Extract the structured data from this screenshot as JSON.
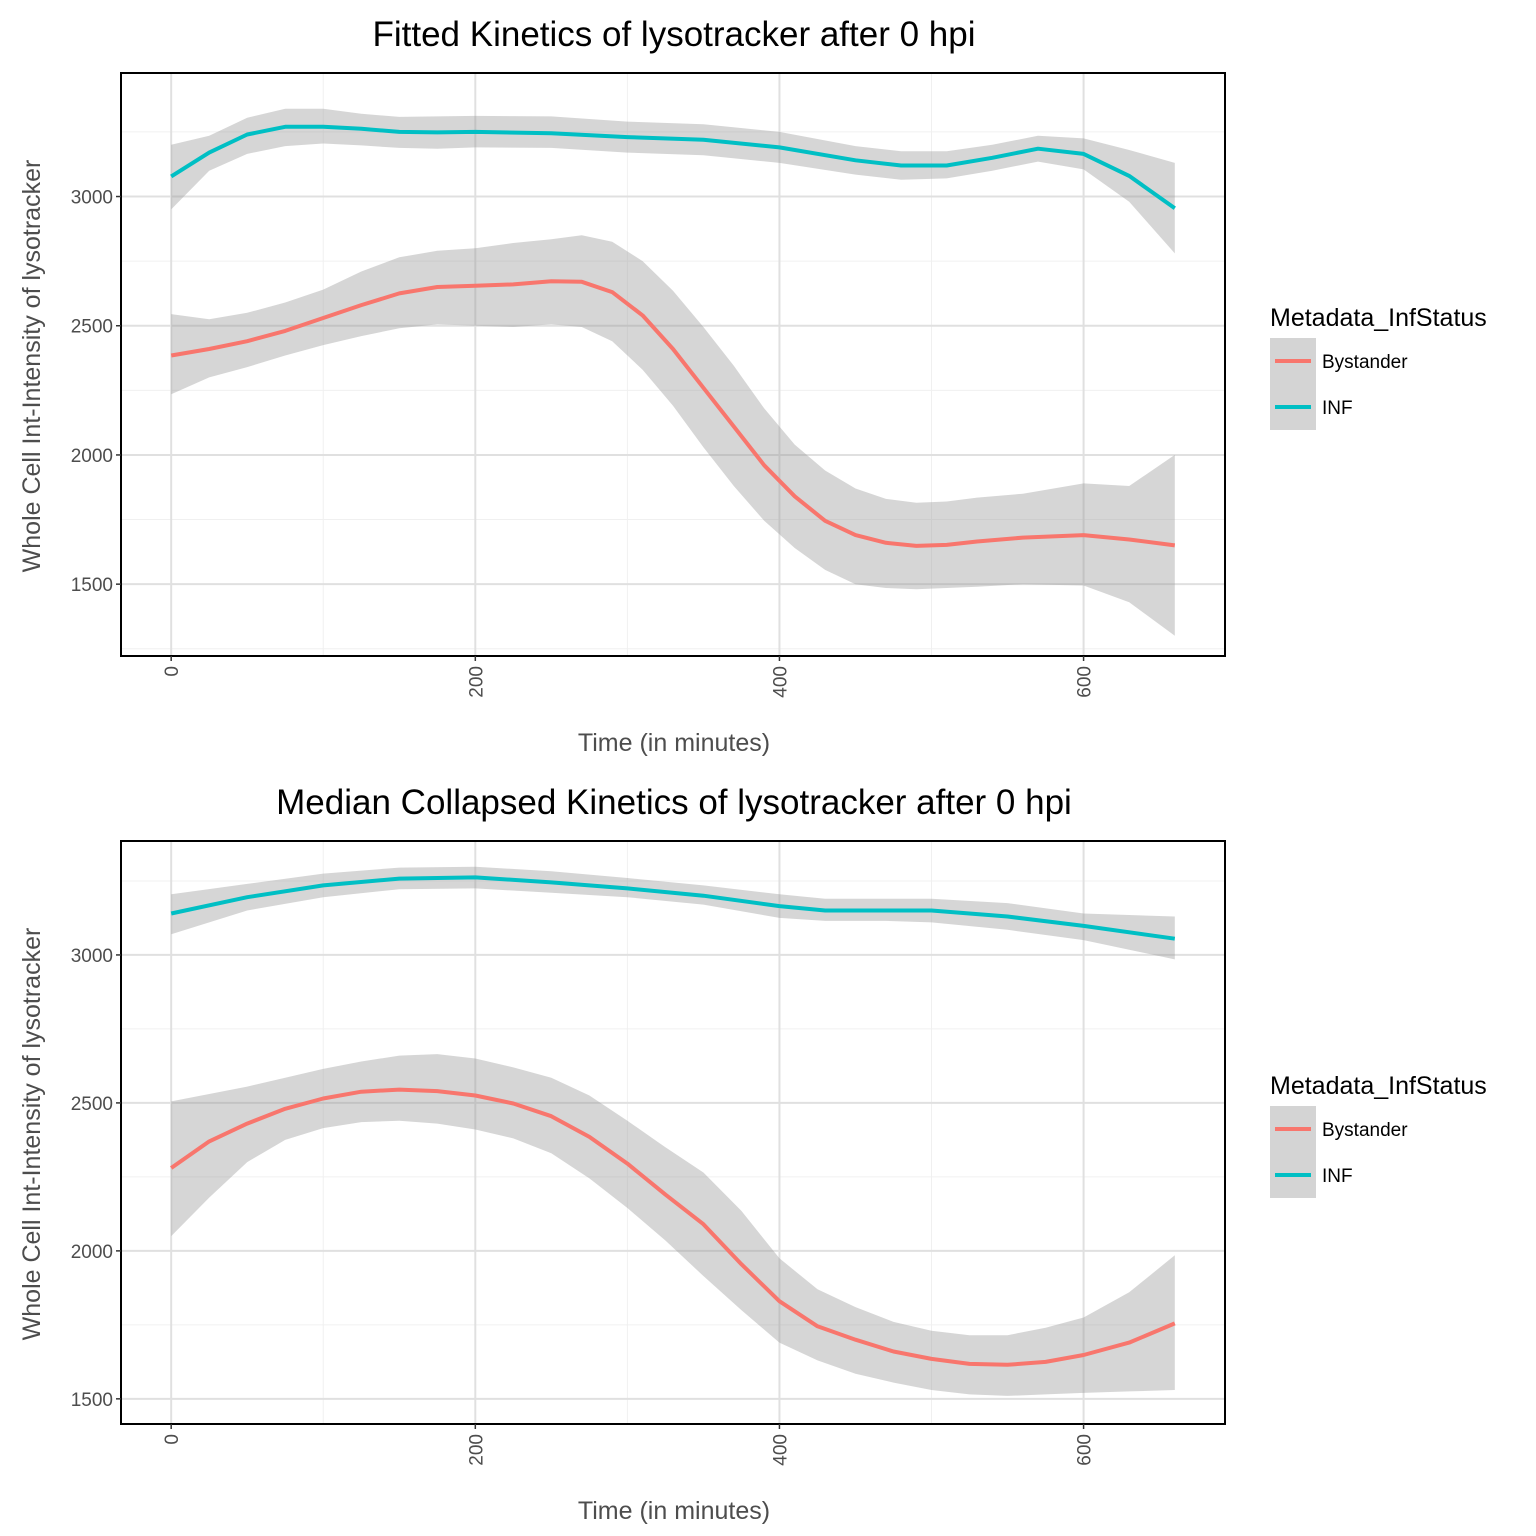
{
  "chart_data": [
    {
      "type": "line",
      "title": "Fitted Kinetics of lysotracker after 0 hpi",
      "xlabel": "Time (in minutes)",
      "ylabel": "Whole Cell Int-Intensity of lysotracker",
      "xlim": [
        -33,
        693
      ],
      "ylim": [
        1222,
        3478
      ],
      "x_ticks": [
        0,
        200,
        400,
        600
      ],
      "y_ticks": [
        1500,
        2000,
        2500,
        3000
      ],
      "grid": true,
      "legend": {
        "title": "Metadata_InfStatus",
        "position": "right"
      },
      "series": [
        {
          "name": "Bystander",
          "color": "#F8766D",
          "x": [
            0,
            25,
            50,
            75,
            100,
            125,
            150,
            175,
            200,
            225,
            250,
            270,
            290,
            310,
            330,
            350,
            370,
            390,
            410,
            430,
            450,
            470,
            490,
            510,
            530,
            560,
            600,
            630,
            660
          ],
          "y": [
            2385,
            2410,
            2440,
            2480,
            2530,
            2580,
            2625,
            2650,
            2655,
            2660,
            2672,
            2670,
            2630,
            2540,
            2410,
            2260,
            2110,
            1960,
            1840,
            1745,
            1690,
            1660,
            1648,
            1652,
            1665,
            1680,
            1690,
            1673,
            1650
          ],
          "lower": [
            2235,
            2300,
            2340,
            2385,
            2425,
            2460,
            2490,
            2505,
            2500,
            2495,
            2505,
            2495,
            2440,
            2330,
            2190,
            2030,
            1880,
            1745,
            1640,
            1555,
            1500,
            1485,
            1480,
            1485,
            1490,
            1500,
            1495,
            1430,
            1300
          ],
          "upper": [
            2545,
            2525,
            2550,
            2590,
            2640,
            2710,
            2765,
            2790,
            2800,
            2820,
            2835,
            2850,
            2825,
            2750,
            2635,
            2495,
            2345,
            2180,
            2040,
            1940,
            1870,
            1830,
            1815,
            1820,
            1835,
            1850,
            1890,
            1880,
            2000
          ]
        },
        {
          "name": "INF",
          "color": "#00BFC4",
          "x": [
            0,
            25,
            50,
            75,
            100,
            125,
            150,
            175,
            200,
            250,
            300,
            350,
            400,
            450,
            480,
            510,
            540,
            570,
            600,
            630,
            660
          ],
          "y": [
            3078,
            3170,
            3240,
            3270,
            3270,
            3262,
            3250,
            3248,
            3250,
            3245,
            3230,
            3220,
            3190,
            3140,
            3120,
            3120,
            3150,
            3185,
            3165,
            3080,
            2955
          ],
          "lower": [
            2950,
            3100,
            3165,
            3195,
            3205,
            3198,
            3188,
            3185,
            3190,
            3188,
            3170,
            3160,
            3130,
            3085,
            3065,
            3070,
            3100,
            3135,
            3105,
            2980,
            2780
          ],
          "upper": [
            3200,
            3235,
            3305,
            3340,
            3340,
            3320,
            3308,
            3310,
            3312,
            3310,
            3290,
            3280,
            3250,
            3195,
            3175,
            3175,
            3200,
            3235,
            3225,
            3180,
            3130
          ]
        }
      ]
    },
    {
      "type": "line",
      "title": "Median Collapsed Kinetics of lysotracker after 0 hpi",
      "xlabel": "Time (in minutes)",
      "ylabel": "Whole Cell Int-Intensity of lysotracker",
      "xlim": [
        -33,
        693
      ],
      "ylim": [
        1415,
        3385
      ],
      "x_ticks": [
        0,
        200,
        400,
        600
      ],
      "y_ticks": [
        1500,
        2000,
        2500,
        3000
      ],
      "grid": true,
      "legend": {
        "title": "Metadata_InfStatus",
        "position": "right"
      },
      "series": [
        {
          "name": "Bystander",
          "color": "#F8766D",
          "x": [
            0,
            25,
            50,
            75,
            100,
            125,
            150,
            175,
            200,
            225,
            250,
            275,
            300,
            325,
            350,
            375,
            400,
            425,
            450,
            475,
            500,
            525,
            550,
            575,
            600,
            630,
            660
          ],
          "y": [
            2280,
            2370,
            2430,
            2480,
            2515,
            2538,
            2545,
            2540,
            2525,
            2498,
            2455,
            2385,
            2295,
            2190,
            2090,
            1955,
            1830,
            1745,
            1700,
            1660,
            1635,
            1618,
            1615,
            1625,
            1648,
            1690,
            1755
          ],
          "lower": [
            2050,
            2180,
            2300,
            2375,
            2415,
            2435,
            2440,
            2430,
            2410,
            2380,
            2330,
            2245,
            2145,
            2035,
            1915,
            1800,
            1690,
            1630,
            1585,
            1555,
            1530,
            1515,
            1510,
            1515,
            1520,
            1525,
            1530
          ],
          "upper": [
            2505,
            2530,
            2555,
            2585,
            2615,
            2640,
            2660,
            2665,
            2650,
            2620,
            2585,
            2525,
            2440,
            2350,
            2265,
            2135,
            1975,
            1870,
            1810,
            1760,
            1730,
            1715,
            1715,
            1740,
            1775,
            1860,
            1985
          ]
        },
        {
          "name": "INF",
          "color": "#00BFC4",
          "x": [
            0,
            50,
            100,
            150,
            200,
            250,
            300,
            350,
            400,
            430,
            470,
            500,
            550,
            600,
            660
          ],
          "y": [
            3140,
            3195,
            3235,
            3258,
            3262,
            3245,
            3225,
            3200,
            3165,
            3150,
            3150,
            3150,
            3130,
            3098,
            3055
          ],
          "lower": [
            3070,
            3150,
            3195,
            3222,
            3225,
            3210,
            3195,
            3170,
            3125,
            3115,
            3115,
            3110,
            3085,
            3050,
            2985
          ],
          "upper": [
            3205,
            3240,
            3275,
            3295,
            3298,
            3283,
            3260,
            3235,
            3205,
            3190,
            3190,
            3190,
            3175,
            3140,
            3130
          ]
        }
      ]
    }
  ]
}
